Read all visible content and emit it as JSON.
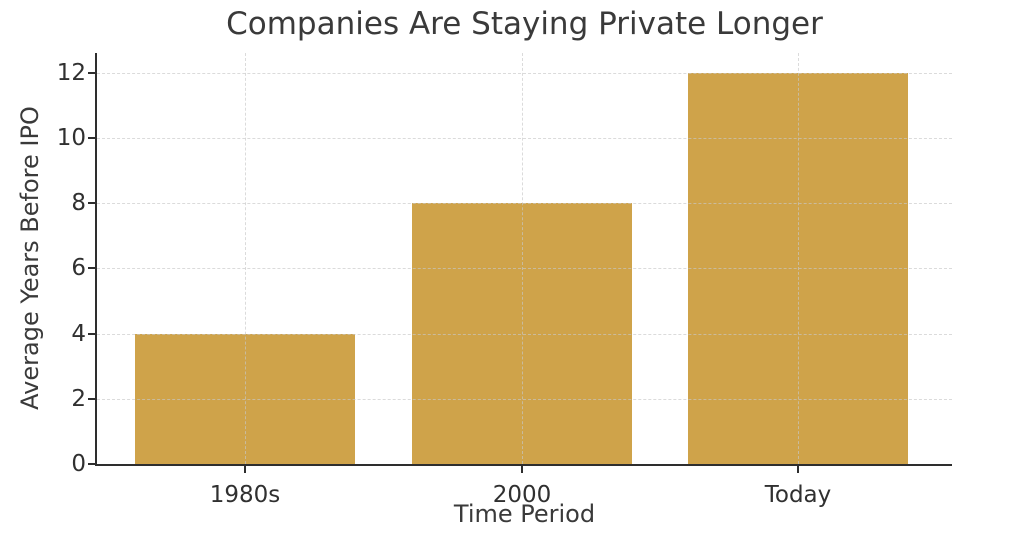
{
  "figure": {
    "background": "#ffffff"
  },
  "chart_data": {
    "type": "bar",
    "title": "Companies Are Staying Private Longer",
    "xlabel": "Time Period",
    "ylabel": "Average Years Before IPO",
    "categories": [
      "1980s",
      "2000",
      "Today"
    ],
    "values": [
      4,
      8,
      12
    ],
    "yticks": [
      0,
      2,
      4,
      6,
      8,
      10,
      12
    ],
    "ytick_labels": [
      "0",
      "2",
      "4",
      "6",
      "8",
      "10",
      "12"
    ],
    "ylim": [
      0,
      12.6
    ],
    "grid": {
      "show": true,
      "style": "dashed",
      "axes": "both",
      "color": "#c8c8c8",
      "drawn_over_bars": true
    },
    "legend": null,
    "spines": {
      "left": true,
      "bottom": true,
      "top": false,
      "right": false
    },
    "colors": {
      "bar": "#cfa34a",
      "spine": "#2e2e2e",
      "title_text": "#3a3a3a",
      "tick_text": "#303030",
      "grid": "#c8c8c8"
    }
  }
}
